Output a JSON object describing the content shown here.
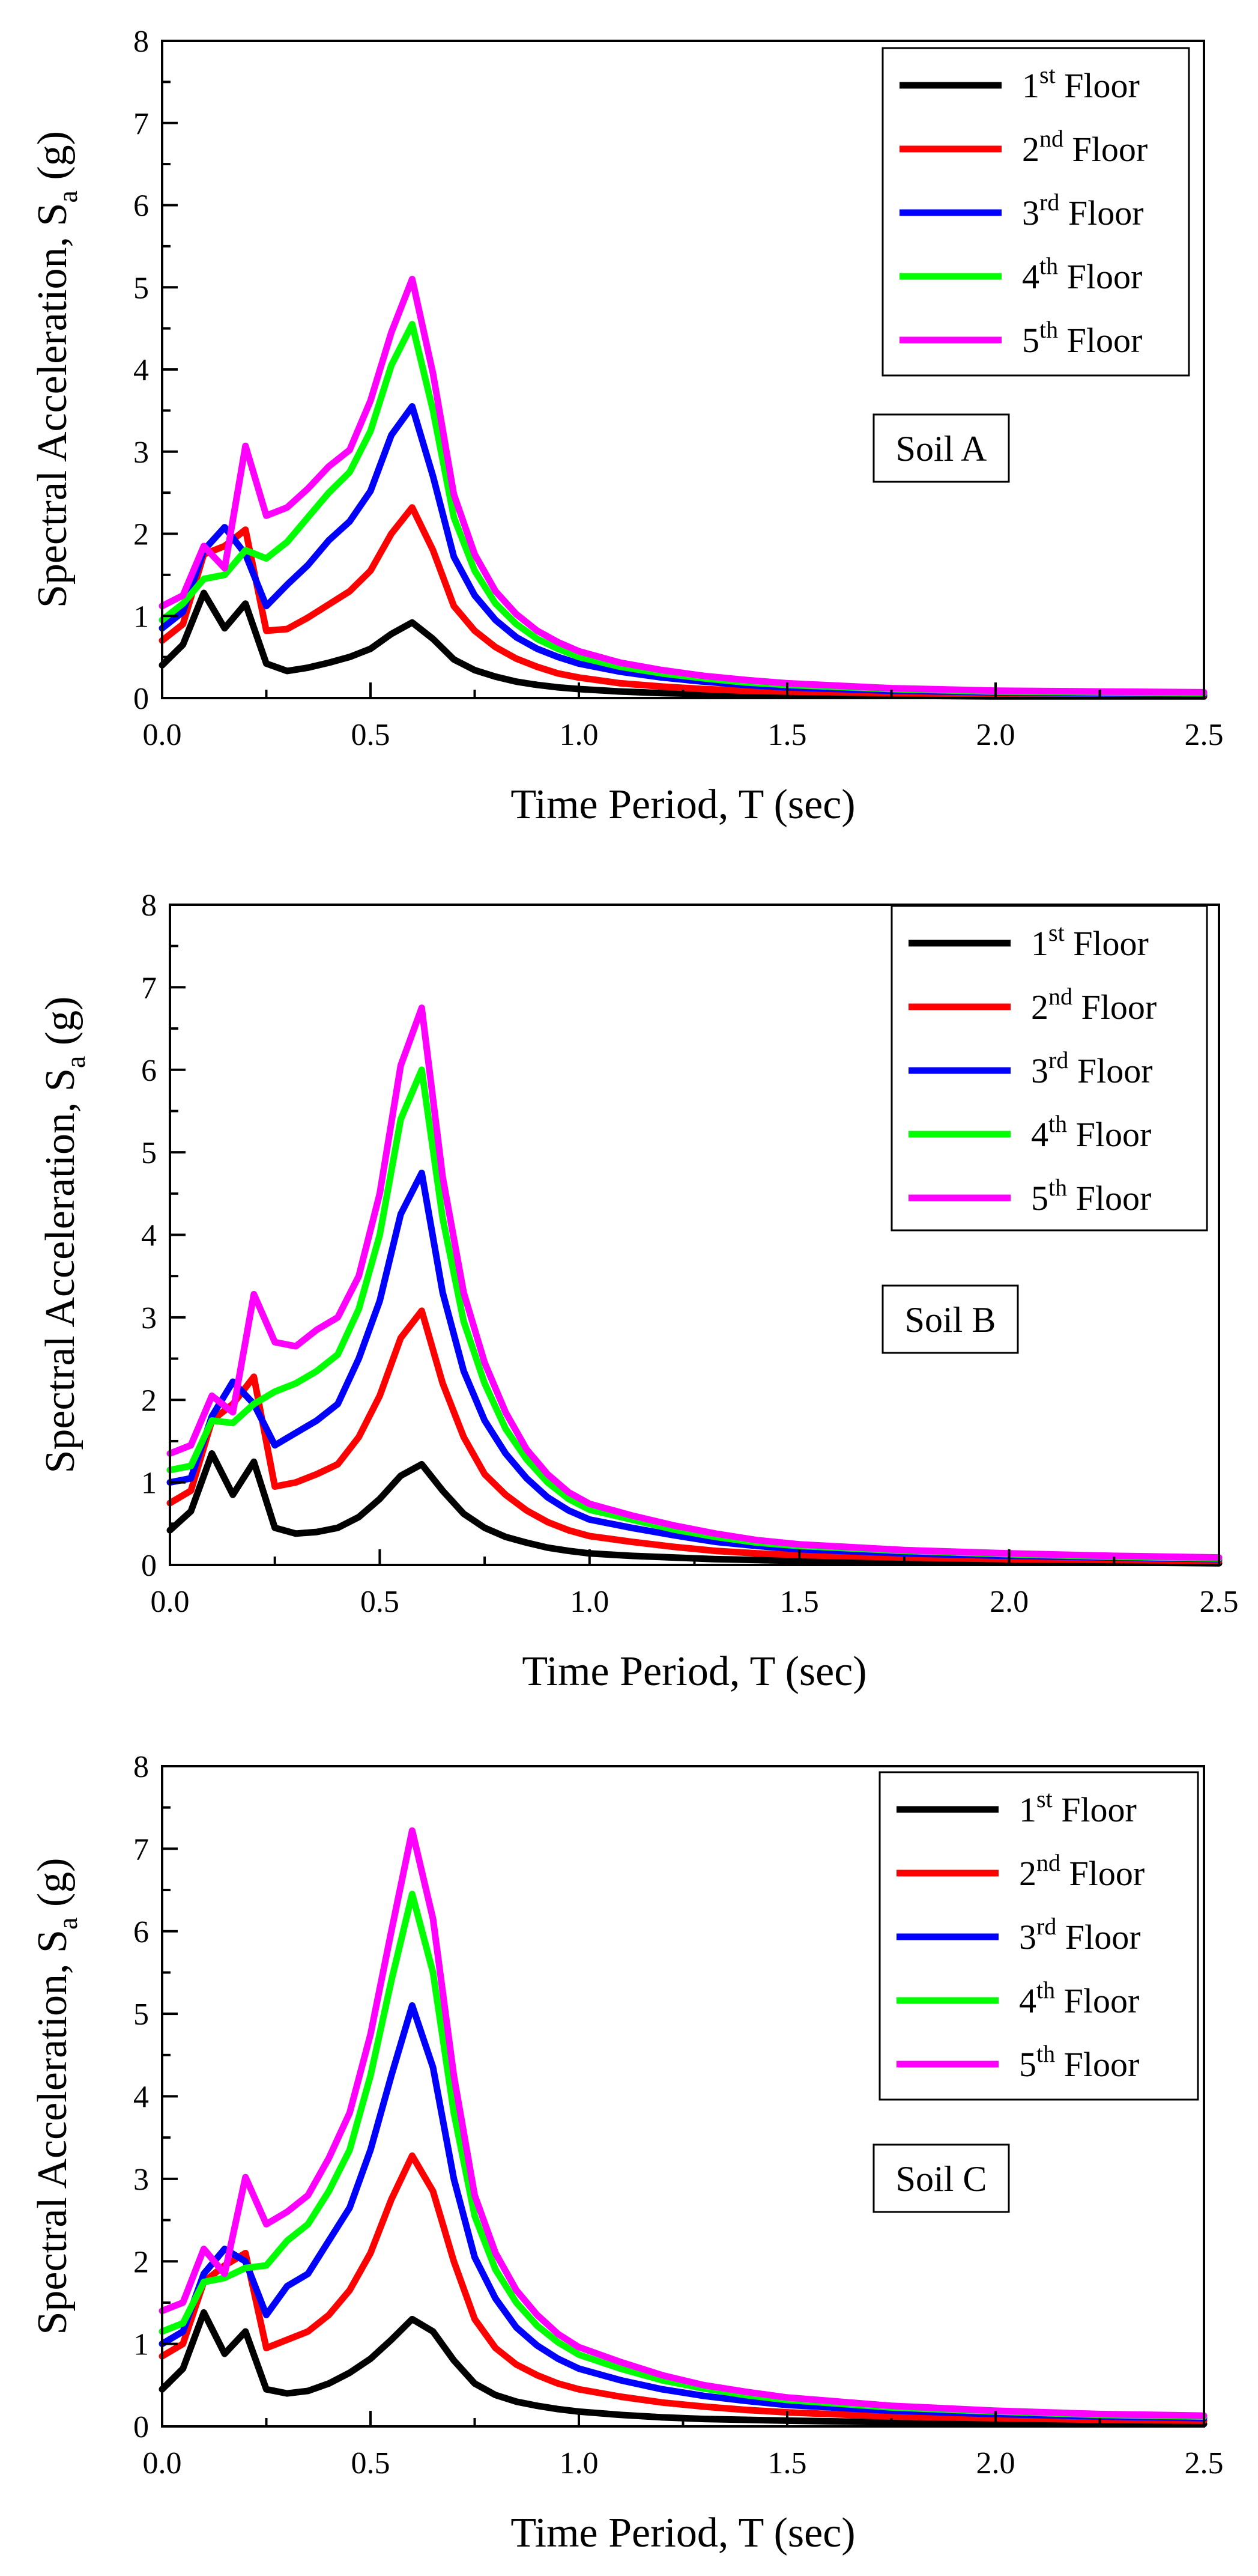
{
  "figure": {
    "xlabel": "Time Period, T (sec)",
    "ylabel_main": "Spectral Acceleration, S",
    "ylabel_sub": "a",
    "ylabel_unit": " (g)"
  },
  "chart_data": [
    {
      "type": "line",
      "title": "Soil A",
      "xlabel": "Time Period, T (sec)",
      "ylabel": "Spectral Acceleration, Sa (g)",
      "xlim": [
        0,
        2.5
      ],
      "ylim": [
        0,
        8
      ],
      "xticks": [
        "0.0",
        "0.5",
        "1.0",
        "1.5",
        "2.0",
        "2.5"
      ],
      "yticks": [
        "0",
        "1",
        "2",
        "3",
        "4",
        "5",
        "6",
        "7",
        "8"
      ],
      "x": [
        0,
        0.05,
        0.1,
        0.15,
        0.2,
        0.25,
        0.3,
        0.35,
        0.4,
        0.45,
        0.5,
        0.55,
        0.6,
        0.65,
        0.7,
        0.75,
        0.8,
        0.85,
        0.9,
        0.95,
        1.0,
        1.1,
        1.2,
        1.3,
        1.4,
        1.5,
        1.75,
        2.0,
        2.25,
        2.5
      ],
      "legend_position": "top-right",
      "series": [
        {
          "name": "1",
          "sup": "st",
          "suffix": " Floor",
          "color": "#000000",
          "values": [
            0.4,
            0.65,
            1.28,
            0.85,
            1.15,
            0.42,
            0.33,
            0.37,
            0.43,
            0.5,
            0.6,
            0.78,
            0.92,
            0.72,
            0.47,
            0.34,
            0.26,
            0.2,
            0.16,
            0.13,
            0.11,
            0.08,
            0.06,
            0.05,
            0.04,
            0.04,
            0.03,
            0.02,
            0.02,
            0.02
          ]
        },
        {
          "name": "2",
          "sup": "nd",
          "suffix": " Floor",
          "color": "#ff0000",
          "values": [
            0.7,
            0.9,
            1.75,
            1.85,
            2.05,
            0.82,
            0.84,
            0.98,
            1.14,
            1.3,
            1.55,
            2.0,
            2.32,
            1.8,
            1.12,
            0.82,
            0.62,
            0.48,
            0.38,
            0.3,
            0.25,
            0.18,
            0.14,
            0.11,
            0.09,
            0.08,
            0.06,
            0.05,
            0.04,
            0.04
          ]
        },
        {
          "name": "3",
          "sup": "rd",
          "suffix": " Floor",
          "color": "#0000ff",
          "values": [
            0.85,
            1.05,
            1.8,
            2.08,
            1.75,
            1.12,
            1.38,
            1.62,
            1.92,
            2.15,
            2.52,
            3.2,
            3.55,
            2.7,
            1.72,
            1.25,
            0.95,
            0.74,
            0.6,
            0.5,
            0.42,
            0.32,
            0.25,
            0.2,
            0.16,
            0.13,
            0.09,
            0.07,
            0.06,
            0.05
          ]
        },
        {
          "name": "4",
          "sup": "th",
          "suffix": " Floor",
          "color": "#00ff00",
          "values": [
            0.95,
            1.15,
            1.45,
            1.5,
            1.8,
            1.7,
            1.9,
            2.2,
            2.5,
            2.75,
            3.25,
            4.05,
            4.55,
            3.5,
            2.2,
            1.55,
            1.15,
            0.9,
            0.72,
            0.6,
            0.5,
            0.38,
            0.3,
            0.24,
            0.19,
            0.16,
            0.11,
            0.08,
            0.07,
            0.06
          ]
        },
        {
          "name": "5",
          "sup": "th",
          "suffix": " Floor",
          "color": "#ff00ff",
          "values": [
            1.12,
            1.25,
            1.85,
            1.58,
            3.07,
            2.22,
            2.32,
            2.55,
            2.82,
            3.02,
            3.62,
            4.45,
            5.1,
            3.95,
            2.48,
            1.75,
            1.3,
            1.02,
            0.82,
            0.68,
            0.57,
            0.43,
            0.34,
            0.27,
            0.22,
            0.18,
            0.12,
            0.09,
            0.08,
            0.07
          ]
        }
      ]
    },
    {
      "type": "line",
      "title": "Soil B",
      "xlabel": "Time Period, T (sec)",
      "ylabel": "Spectral Acceleration, Sa (g)",
      "xlim": [
        0,
        2.5
      ],
      "ylim": [
        0,
        8
      ],
      "xticks": [
        "0.0",
        "0.5",
        "1.0",
        "1.5",
        "2.0",
        "2.5"
      ],
      "yticks": [
        "0",
        "1",
        "2",
        "3",
        "4",
        "5",
        "6",
        "7",
        "8"
      ],
      "x": [
        0,
        0.05,
        0.1,
        0.15,
        0.2,
        0.25,
        0.3,
        0.35,
        0.4,
        0.45,
        0.5,
        0.55,
        0.6,
        0.65,
        0.7,
        0.75,
        0.8,
        0.85,
        0.9,
        0.95,
        1.0,
        1.1,
        1.2,
        1.3,
        1.4,
        1.5,
        1.75,
        2.0,
        2.25,
        2.5
      ],
      "legend_position": "top-right",
      "series": [
        {
          "name": "1",
          "sup": "st",
          "suffix": " Floor",
          "color": "#000000",
          "values": [
            0.42,
            0.65,
            1.35,
            0.85,
            1.25,
            0.45,
            0.38,
            0.4,
            0.45,
            0.58,
            0.8,
            1.08,
            1.22,
            0.9,
            0.62,
            0.45,
            0.34,
            0.27,
            0.21,
            0.17,
            0.14,
            0.11,
            0.09,
            0.07,
            0.06,
            0.05,
            0.04,
            0.03,
            0.03,
            0.02
          ]
        },
        {
          "name": "2",
          "sup": "nd",
          "suffix": " Floor",
          "color": "#ff0000",
          "values": [
            0.75,
            0.9,
            1.75,
            1.95,
            2.28,
            0.95,
            1.0,
            1.1,
            1.22,
            1.55,
            2.05,
            2.75,
            3.08,
            2.2,
            1.55,
            1.1,
            0.85,
            0.66,
            0.52,
            0.42,
            0.35,
            0.28,
            0.22,
            0.17,
            0.14,
            0.12,
            0.09,
            0.07,
            0.06,
            0.05
          ]
        },
        {
          "name": "3",
          "sup": "rd",
          "suffix": " Floor",
          "color": "#0000ff",
          "values": [
            1.0,
            1.05,
            1.8,
            2.22,
            1.95,
            1.45,
            1.6,
            1.75,
            1.95,
            2.5,
            3.2,
            4.25,
            4.75,
            3.3,
            2.35,
            1.75,
            1.35,
            1.05,
            0.82,
            0.66,
            0.55,
            0.45,
            0.36,
            0.28,
            0.23,
            0.19,
            0.14,
            0.11,
            0.09,
            0.07
          ]
        },
        {
          "name": "4",
          "sup": "th",
          "suffix": " Floor",
          "color": "#00ff00",
          "values": [
            1.15,
            1.2,
            1.75,
            1.72,
            1.95,
            2.1,
            2.2,
            2.35,
            2.55,
            3.1,
            4.0,
            5.4,
            6.0,
            4.2,
            2.95,
            2.2,
            1.65,
            1.28,
            1.0,
            0.8,
            0.67,
            0.55,
            0.43,
            0.34,
            0.27,
            0.23,
            0.17,
            0.13,
            0.1,
            0.08
          ]
        },
        {
          "name": "5",
          "sup": "th",
          "suffix": " Floor",
          "color": "#ff00ff",
          "values": [
            1.35,
            1.45,
            2.05,
            1.85,
            3.28,
            2.7,
            2.65,
            2.85,
            3.0,
            3.5,
            4.5,
            6.05,
            6.75,
            4.7,
            3.3,
            2.45,
            1.85,
            1.4,
            1.1,
            0.88,
            0.74,
            0.6,
            0.48,
            0.38,
            0.3,
            0.25,
            0.18,
            0.14,
            0.11,
            0.09
          ]
        }
      ]
    },
    {
      "type": "line",
      "title": "Soil C",
      "xlabel": "Time Period, T (sec)",
      "ylabel": "Spectral Acceleration, Sa (g)",
      "xlim": [
        0,
        2.5
      ],
      "ylim": [
        0,
        8
      ],
      "xticks": [
        "0.0",
        "0.5",
        "1.0",
        "1.5",
        "2.0",
        "2.5"
      ],
      "yticks": [
        "0",
        "1",
        "2",
        "3",
        "4",
        "5",
        "6",
        "7",
        "8"
      ],
      "x": [
        0,
        0.05,
        0.1,
        0.15,
        0.2,
        0.25,
        0.3,
        0.35,
        0.4,
        0.45,
        0.5,
        0.55,
        0.6,
        0.65,
        0.7,
        0.75,
        0.8,
        0.85,
        0.9,
        0.95,
        1.0,
        1.1,
        1.2,
        1.3,
        1.4,
        1.5,
        1.75,
        2.0,
        2.25,
        2.5
      ],
      "legend_position": "top-right",
      "series": [
        {
          "name": "1",
          "sup": "st",
          "suffix": " Floor",
          "color": "#000000",
          "values": [
            0.45,
            0.7,
            1.38,
            0.88,
            1.15,
            0.45,
            0.4,
            0.43,
            0.52,
            0.65,
            0.82,
            1.05,
            1.3,
            1.15,
            0.8,
            0.52,
            0.38,
            0.3,
            0.25,
            0.21,
            0.18,
            0.14,
            0.11,
            0.09,
            0.08,
            0.07,
            0.05,
            0.04,
            0.03,
            0.03
          ]
        },
        {
          "name": "2",
          "sup": "nd",
          "suffix": " Floor",
          "color": "#ff0000",
          "values": [
            0.85,
            1.0,
            1.75,
            1.95,
            2.1,
            0.95,
            1.05,
            1.15,
            1.35,
            1.65,
            2.1,
            2.75,
            3.28,
            2.85,
            2.0,
            1.3,
            0.95,
            0.75,
            0.62,
            0.52,
            0.45,
            0.36,
            0.29,
            0.24,
            0.2,
            0.17,
            0.12,
            0.1,
            0.08,
            0.07
          ]
        },
        {
          "name": "3",
          "sup": "rd",
          "suffix": " Floor",
          "color": "#0000ff",
          "values": [
            1.0,
            1.15,
            1.85,
            2.15,
            2.0,
            1.35,
            1.7,
            1.85,
            2.25,
            2.65,
            3.35,
            4.25,
            5.1,
            4.35,
            3.0,
            2.05,
            1.55,
            1.2,
            0.98,
            0.82,
            0.7,
            0.56,
            0.45,
            0.37,
            0.31,
            0.26,
            0.19,
            0.15,
            0.12,
            0.1
          ]
        },
        {
          "name": "4",
          "sup": "th",
          "suffix": " Floor",
          "color": "#00ff00",
          "values": [
            1.15,
            1.25,
            1.75,
            1.8,
            1.92,
            1.95,
            2.25,
            2.45,
            2.85,
            3.35,
            4.25,
            5.4,
            6.45,
            5.5,
            3.8,
            2.55,
            1.9,
            1.5,
            1.22,
            1.02,
            0.87,
            0.7,
            0.56,
            0.46,
            0.38,
            0.32,
            0.23,
            0.18,
            0.14,
            0.12
          ]
        },
        {
          "name": "5",
          "sup": "th",
          "suffix": " Floor",
          "color": "#ff00ff",
          "values": [
            1.4,
            1.5,
            2.15,
            1.85,
            3.02,
            2.45,
            2.6,
            2.8,
            3.25,
            3.8,
            4.75,
            6.0,
            7.22,
            6.15,
            4.25,
            2.8,
            2.1,
            1.65,
            1.35,
            1.12,
            0.96,
            0.78,
            0.62,
            0.5,
            0.42,
            0.35,
            0.25,
            0.19,
            0.15,
            0.13
          ]
        }
      ]
    }
  ]
}
